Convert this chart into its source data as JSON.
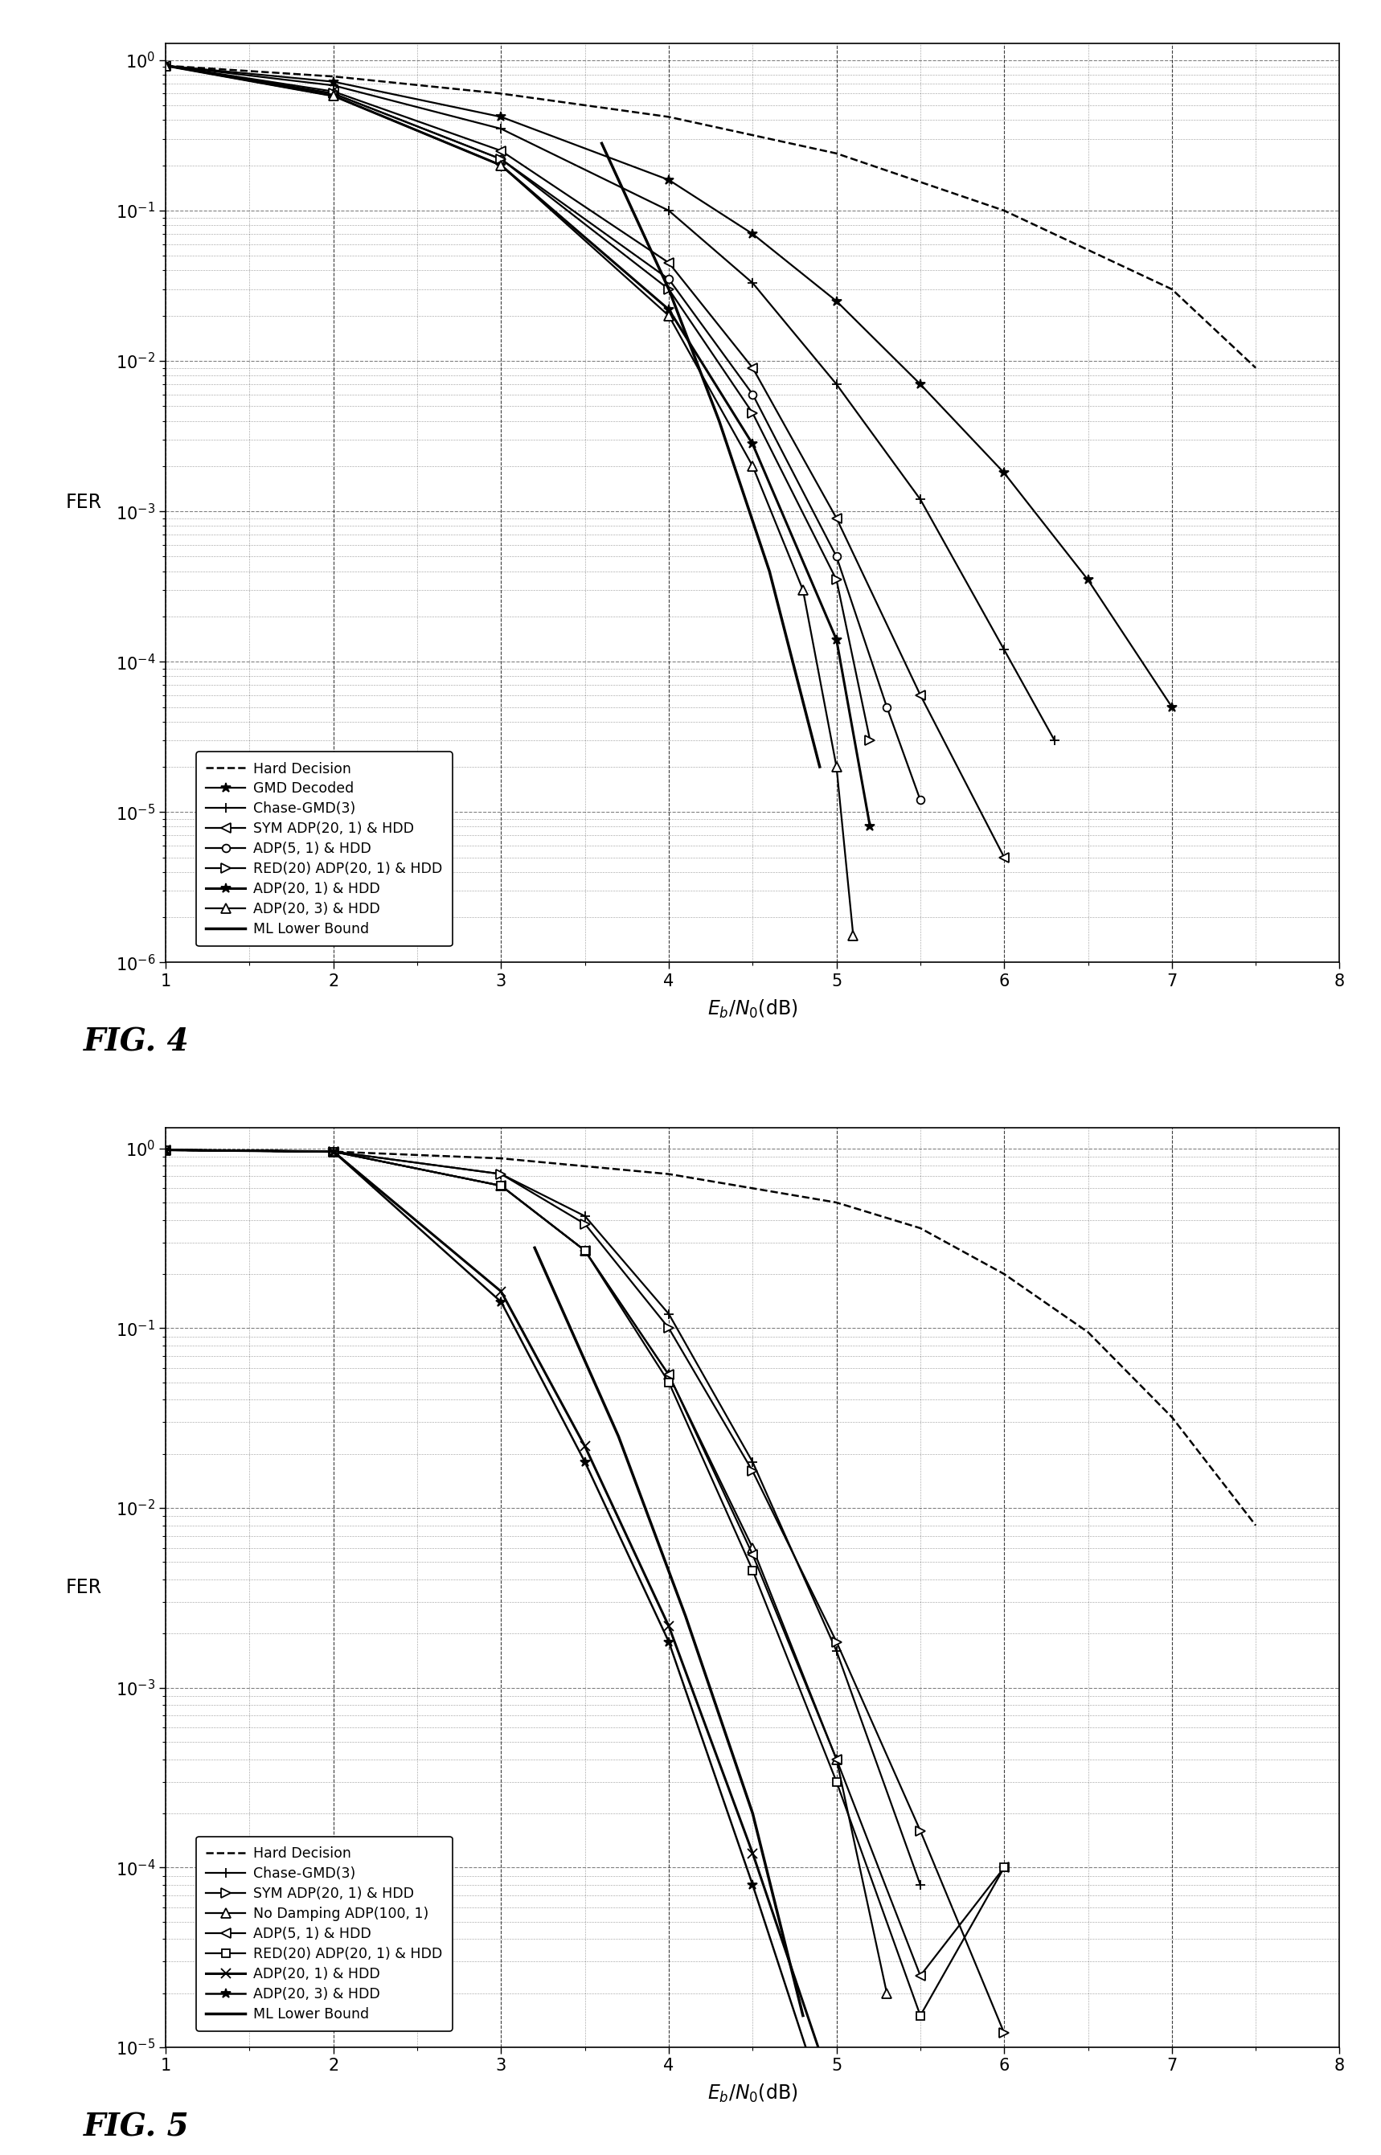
{
  "fig4": {
    "fig_label": "FIG. 4",
    "xlabel": "E_b/N_0(dB)",
    "ylabel": "FER",
    "xlim": [
      1,
      8
    ],
    "ylim": [
      1e-06,
      1.3
    ],
    "series": [
      {
        "label": "Hard Decision",
        "linestyle": "--",
        "marker": "None",
        "markersize": 0,
        "linewidth": 1.8,
        "x": [
          1.0,
          2.0,
          3.0,
          4.0,
          5.0,
          6.0,
          7.0,
          7.5
        ],
        "y": [
          0.92,
          0.78,
          0.6,
          0.42,
          0.24,
          0.1,
          0.03,
          0.009
        ]
      },
      {
        "label": "GMD Decoded",
        "linestyle": "-",
        "marker": "*",
        "markersize": 9,
        "linewidth": 1.6,
        "mfc": "black",
        "x": [
          1.0,
          2.0,
          3.0,
          4.0,
          4.5,
          5.0,
          5.5,
          6.0,
          6.5,
          7.0
        ],
        "y": [
          0.92,
          0.72,
          0.42,
          0.16,
          0.07,
          0.025,
          0.007,
          0.0018,
          0.00035,
          5e-05
        ]
      },
      {
        "label": "Chase-GMD(3)",
        "linestyle": "-",
        "marker": "+",
        "markersize": 9,
        "linewidth": 1.6,
        "mfc": "black",
        "x": [
          1.0,
          2.0,
          3.0,
          4.0,
          4.5,
          5.0,
          5.5,
          6.0,
          6.3
        ],
        "y": [
          0.92,
          0.68,
          0.35,
          0.1,
          0.033,
          0.007,
          0.0012,
          0.00012,
          3e-05
        ]
      },
      {
        "label": "SYM ADP(20, 1) & HDD",
        "linestyle": "-",
        "marker": "<",
        "markersize": 8,
        "linewidth": 1.6,
        "mfc": "white",
        "x": [
          1.0,
          2.0,
          3.0,
          4.0,
          4.5,
          5.0,
          5.5,
          6.0
        ],
        "y": [
          0.92,
          0.62,
          0.25,
          0.045,
          0.009,
          0.0009,
          6e-05,
          5e-06
        ]
      },
      {
        "label": "ADP(5, 1) & HDD",
        "linestyle": "-",
        "marker": "o",
        "markersize": 7,
        "linewidth": 1.6,
        "mfc": "white",
        "x": [
          1.0,
          2.0,
          3.0,
          4.0,
          4.5,
          5.0,
          5.3,
          5.5
        ],
        "y": [
          0.92,
          0.6,
          0.22,
          0.035,
          0.006,
          0.0005,
          5e-05,
          1.2e-05
        ]
      },
      {
        "label": "RED(20) ADP(20, 1) & HDD",
        "linestyle": "-",
        "marker": ">",
        "markersize": 8,
        "linewidth": 1.6,
        "mfc": "white",
        "x": [
          1.0,
          2.0,
          3.0,
          4.0,
          4.5,
          5.0,
          5.2
        ],
        "y": [
          0.92,
          0.6,
          0.22,
          0.03,
          0.0045,
          0.00035,
          3e-05
        ]
      },
      {
        "label": "ADP(20, 1) & HDD",
        "linestyle": "-",
        "marker": "*",
        "markersize": 9,
        "linewidth": 2.2,
        "mfc": "black",
        "x": [
          1.0,
          2.0,
          3.0,
          4.0,
          4.5,
          5.0,
          5.2
        ],
        "y": [
          0.92,
          0.58,
          0.2,
          0.022,
          0.0028,
          0.00014,
          8e-06
        ]
      },
      {
        "label": "ADP(20, 3) & HDD",
        "linestyle": "-",
        "marker": "^",
        "markersize": 8,
        "linewidth": 1.6,
        "mfc": "white",
        "x": [
          1.0,
          2.0,
          3.0,
          4.0,
          4.5,
          4.8,
          5.0,
          5.1
        ],
        "y": [
          0.92,
          0.58,
          0.2,
          0.02,
          0.002,
          0.0003,
          2e-05,
          1.5e-06
        ]
      },
      {
        "label": "ML Lower Bound",
        "linestyle": "-",
        "marker": "None",
        "markersize": 0,
        "linewidth": 2.5,
        "mfc": "black",
        "x": [
          3.6,
          4.0,
          4.3,
          4.6,
          4.9
        ],
        "y": [
          0.28,
          0.03,
          0.004,
          0.0004,
          2e-05
        ]
      }
    ]
  },
  "fig5": {
    "fig_label": "FIG. 5",
    "xlabel": "E_b/N_0(dB)",
    "ylabel": "FER",
    "xlim": [
      1,
      8
    ],
    "ylim": [
      1e-05,
      1.3
    ],
    "series": [
      {
        "label": "Hard Decision",
        "linestyle": "--",
        "marker": "None",
        "markersize": 0,
        "linewidth": 1.8,
        "mfc": "black",
        "x": [
          1.0,
          2.0,
          3.0,
          4.0,
          5.0,
          5.5,
          6.0,
          6.5,
          7.0,
          7.5
        ],
        "y": [
          0.98,
          0.96,
          0.88,
          0.72,
          0.5,
          0.36,
          0.2,
          0.095,
          0.032,
          0.008
        ]
      },
      {
        "label": "Chase-GMD(3)",
        "linestyle": "-",
        "marker": "+",
        "markersize": 9,
        "linewidth": 1.6,
        "mfc": "black",
        "x": [
          1.0,
          2.0,
          3.0,
          3.5,
          4.0,
          4.5,
          5.0,
          5.5
        ],
        "y": [
          0.98,
          0.96,
          0.72,
          0.42,
          0.12,
          0.018,
          0.0016,
          8e-05
        ]
      },
      {
        "label": "SYM ADP(20, 1) & HDD",
        "linestyle": "-",
        "marker": ">",
        "markersize": 8,
        "linewidth": 1.6,
        "mfc": "white",
        "x": [
          1.0,
          2.0,
          3.0,
          3.5,
          4.0,
          4.5,
          5.0,
          5.5,
          6.0
        ],
        "y": [
          0.98,
          0.96,
          0.72,
          0.38,
          0.1,
          0.016,
          0.0018,
          0.00016,
          1.2e-05
        ]
      },
      {
        "label": "No Damping ADP(100, 1)",
        "linestyle": "-",
        "marker": "^",
        "markersize": 8,
        "linewidth": 1.6,
        "mfc": "white",
        "x": [
          1.0,
          2.0,
          3.0,
          3.5,
          4.0,
          4.5,
          5.0,
          5.3
        ],
        "y": [
          0.98,
          0.96,
          0.62,
          0.27,
          0.055,
          0.006,
          0.0004,
          2e-05
        ]
      },
      {
        "label": "ADP(5, 1) & HDD",
        "linestyle": "-",
        "marker": "<",
        "markersize": 8,
        "linewidth": 1.6,
        "mfc": "white",
        "x": [
          1.0,
          2.0,
          3.0,
          3.5,
          4.0,
          4.5,
          5.0,
          5.5,
          6.0
        ],
        "y": [
          0.98,
          0.96,
          0.62,
          0.27,
          0.055,
          0.0055,
          0.0004,
          2.5e-05,
          0.0001
        ]
      },
      {
        "label": "RED(20) ADP(20, 1) & HDD",
        "linestyle": "-",
        "marker": "s",
        "markersize": 7,
        "linewidth": 1.6,
        "mfc": "white",
        "x": [
          1.0,
          2.0,
          3.0,
          3.5,
          4.0,
          4.5,
          5.0,
          5.5,
          6.0
        ],
        "y": [
          0.98,
          0.96,
          0.62,
          0.27,
          0.05,
          0.0045,
          0.0003,
          1.5e-05,
          0.0001
        ]
      },
      {
        "label": "ADP(20, 1) & HDD",
        "linestyle": "-",
        "marker": "x",
        "markersize": 9,
        "linewidth": 2.2,
        "mfc": "black",
        "x": [
          1.0,
          2.0,
          3.0,
          3.5,
          4.0,
          4.5,
          5.0,
          5.2
        ],
        "y": [
          0.98,
          0.96,
          0.16,
          0.022,
          0.0022,
          0.00012,
          5e-06,
          2e-06
        ]
      },
      {
        "label": "ADP(20, 3) & HDD",
        "linestyle": "-",
        "marker": "*",
        "markersize": 9,
        "linewidth": 1.8,
        "mfc": "black",
        "x": [
          1.0,
          2.0,
          3.0,
          3.5,
          4.0,
          4.5,
          5.0,
          5.2
        ],
        "y": [
          0.98,
          0.96,
          0.14,
          0.018,
          0.0018,
          8e-05,
          3e-06,
          2e-06
        ]
      },
      {
        "label": "ML Lower Bound",
        "linestyle": "-",
        "marker": "None",
        "markersize": 0,
        "linewidth": 2.5,
        "mfc": "black",
        "x": [
          3.2,
          3.7,
          4.1,
          4.5,
          4.8
        ],
        "y": [
          0.28,
          0.025,
          0.0025,
          0.0002,
          1.5e-05
        ]
      }
    ]
  }
}
